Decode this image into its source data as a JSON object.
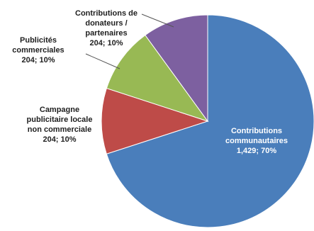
{
  "chart_data": {
    "type": "pie",
    "title": "",
    "slices": [
      {
        "label_lines": [
          "Contributions",
          "communautaires"
        ],
        "value_text": "1,429; 70%",
        "value": 1429,
        "percent": 70,
        "color": "#4a7ebb",
        "label_color": "#ffffff"
      },
      {
        "label_lines": [
          "Campagne",
          "publicitaire locale",
          "non commerciale"
        ],
        "value_text": "204; 10%",
        "value": 204,
        "percent": 10,
        "color": "#be4b48",
        "label_color": "#1f1f1f"
      },
      {
        "label_lines": [
          "Publicités",
          "commerciales"
        ],
        "value_text": "204; 10%",
        "value": 204,
        "percent": 10,
        "color": "#98b954",
        "label_color": "#1f1f1f"
      },
      {
        "label_lines": [
          "Contributions de",
          "donateurs /",
          "partenaires"
        ],
        "value_text": "204; 10%",
        "value": 204,
        "percent": 10,
        "color": "#7d60a0",
        "label_color": "#1f1f1f"
      }
    ],
    "legend": "none",
    "start_angle_deg": 0,
    "direction": "clockwise"
  }
}
